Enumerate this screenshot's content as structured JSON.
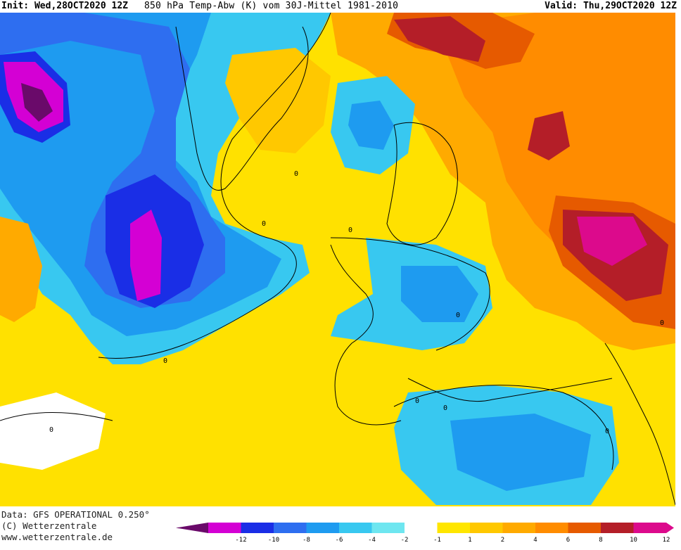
{
  "header": {
    "init": "Init: Wed,28OCT2020 12Z",
    "title": "850 hPa Temp-Abw (K) vom 30J-Mittel 1981-2010",
    "valid": "Valid: Thu,29OCT2020 12Z"
  },
  "footer": {
    "data_line": "Data: GFS OPERATIONAL 0.250°",
    "copyright": "(C) Wetterzentrale",
    "url": "www.wetterzentrale.de"
  },
  "legend": {
    "ticks": [
      "-12",
      "-10",
      "-8",
      "-6",
      "-4",
      "-2",
      "-1",
      "1",
      "2",
      "4",
      "6",
      "8",
      "10",
      "12"
    ],
    "colors": [
      "#d400d4",
      "#1a2ee6",
      "#2e6ef0",
      "#1e9bf0",
      "#38c8f0",
      "#6ee6f0",
      "#ffffff",
      "#ffe600",
      "#ffc800",
      "#ffaa00",
      "#ff8c00",
      "#e65a00",
      "#b41e28",
      "#dc0a8c"
    ],
    "end_low": "#6a0a6a",
    "end_high": "#dc0a8c"
  },
  "map": {
    "contour_labels": [
      "0",
      "0",
      "0",
      "0",
      "0",
      "0",
      "0",
      "0",
      "0",
      "0"
    ]
  }
}
